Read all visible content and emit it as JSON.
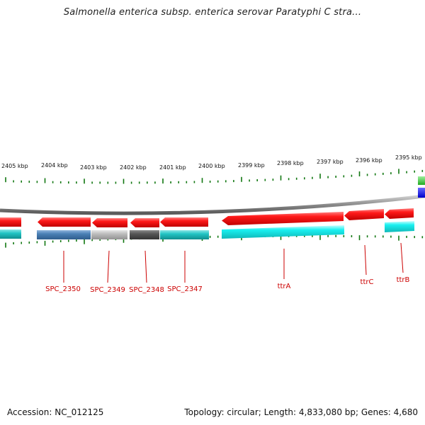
{
  "title": "Salmonella enterica subsp. enterica serovar Paratyphi C stra...",
  "footer": {
    "accession": "Accession: NC_012125",
    "topology": "Topology: circular; Length: 4,833,080 bp; Genes: 4,680"
  },
  "scale_labels": [
    "2405 kbp",
    "2404 kbp",
    "2403 kbp",
    "2402 kbp",
    "2401 kbp",
    "2400 kbp",
    "2399 kbp",
    "2398 kbp",
    "2397 kbp",
    "2396 kbp",
    "2395 kbp"
  ],
  "genes": [
    "SPC_2350",
    "SPC_2349",
    "SPC_2348",
    "SPC_2347",
    "ttrA",
    "ttrC",
    "ttrB"
  ],
  "colors": {
    "forward_strand": "#ee1111",
    "cog_cyan": "#22dddd",
    "cog_steelblue": "#4a7fb5",
    "cog_gray": "#b5b5b5",
    "cog_darkgray": "#555555",
    "tick_green": "#117711",
    "backbone": "#888888",
    "label_red": "#cc0000"
  }
}
